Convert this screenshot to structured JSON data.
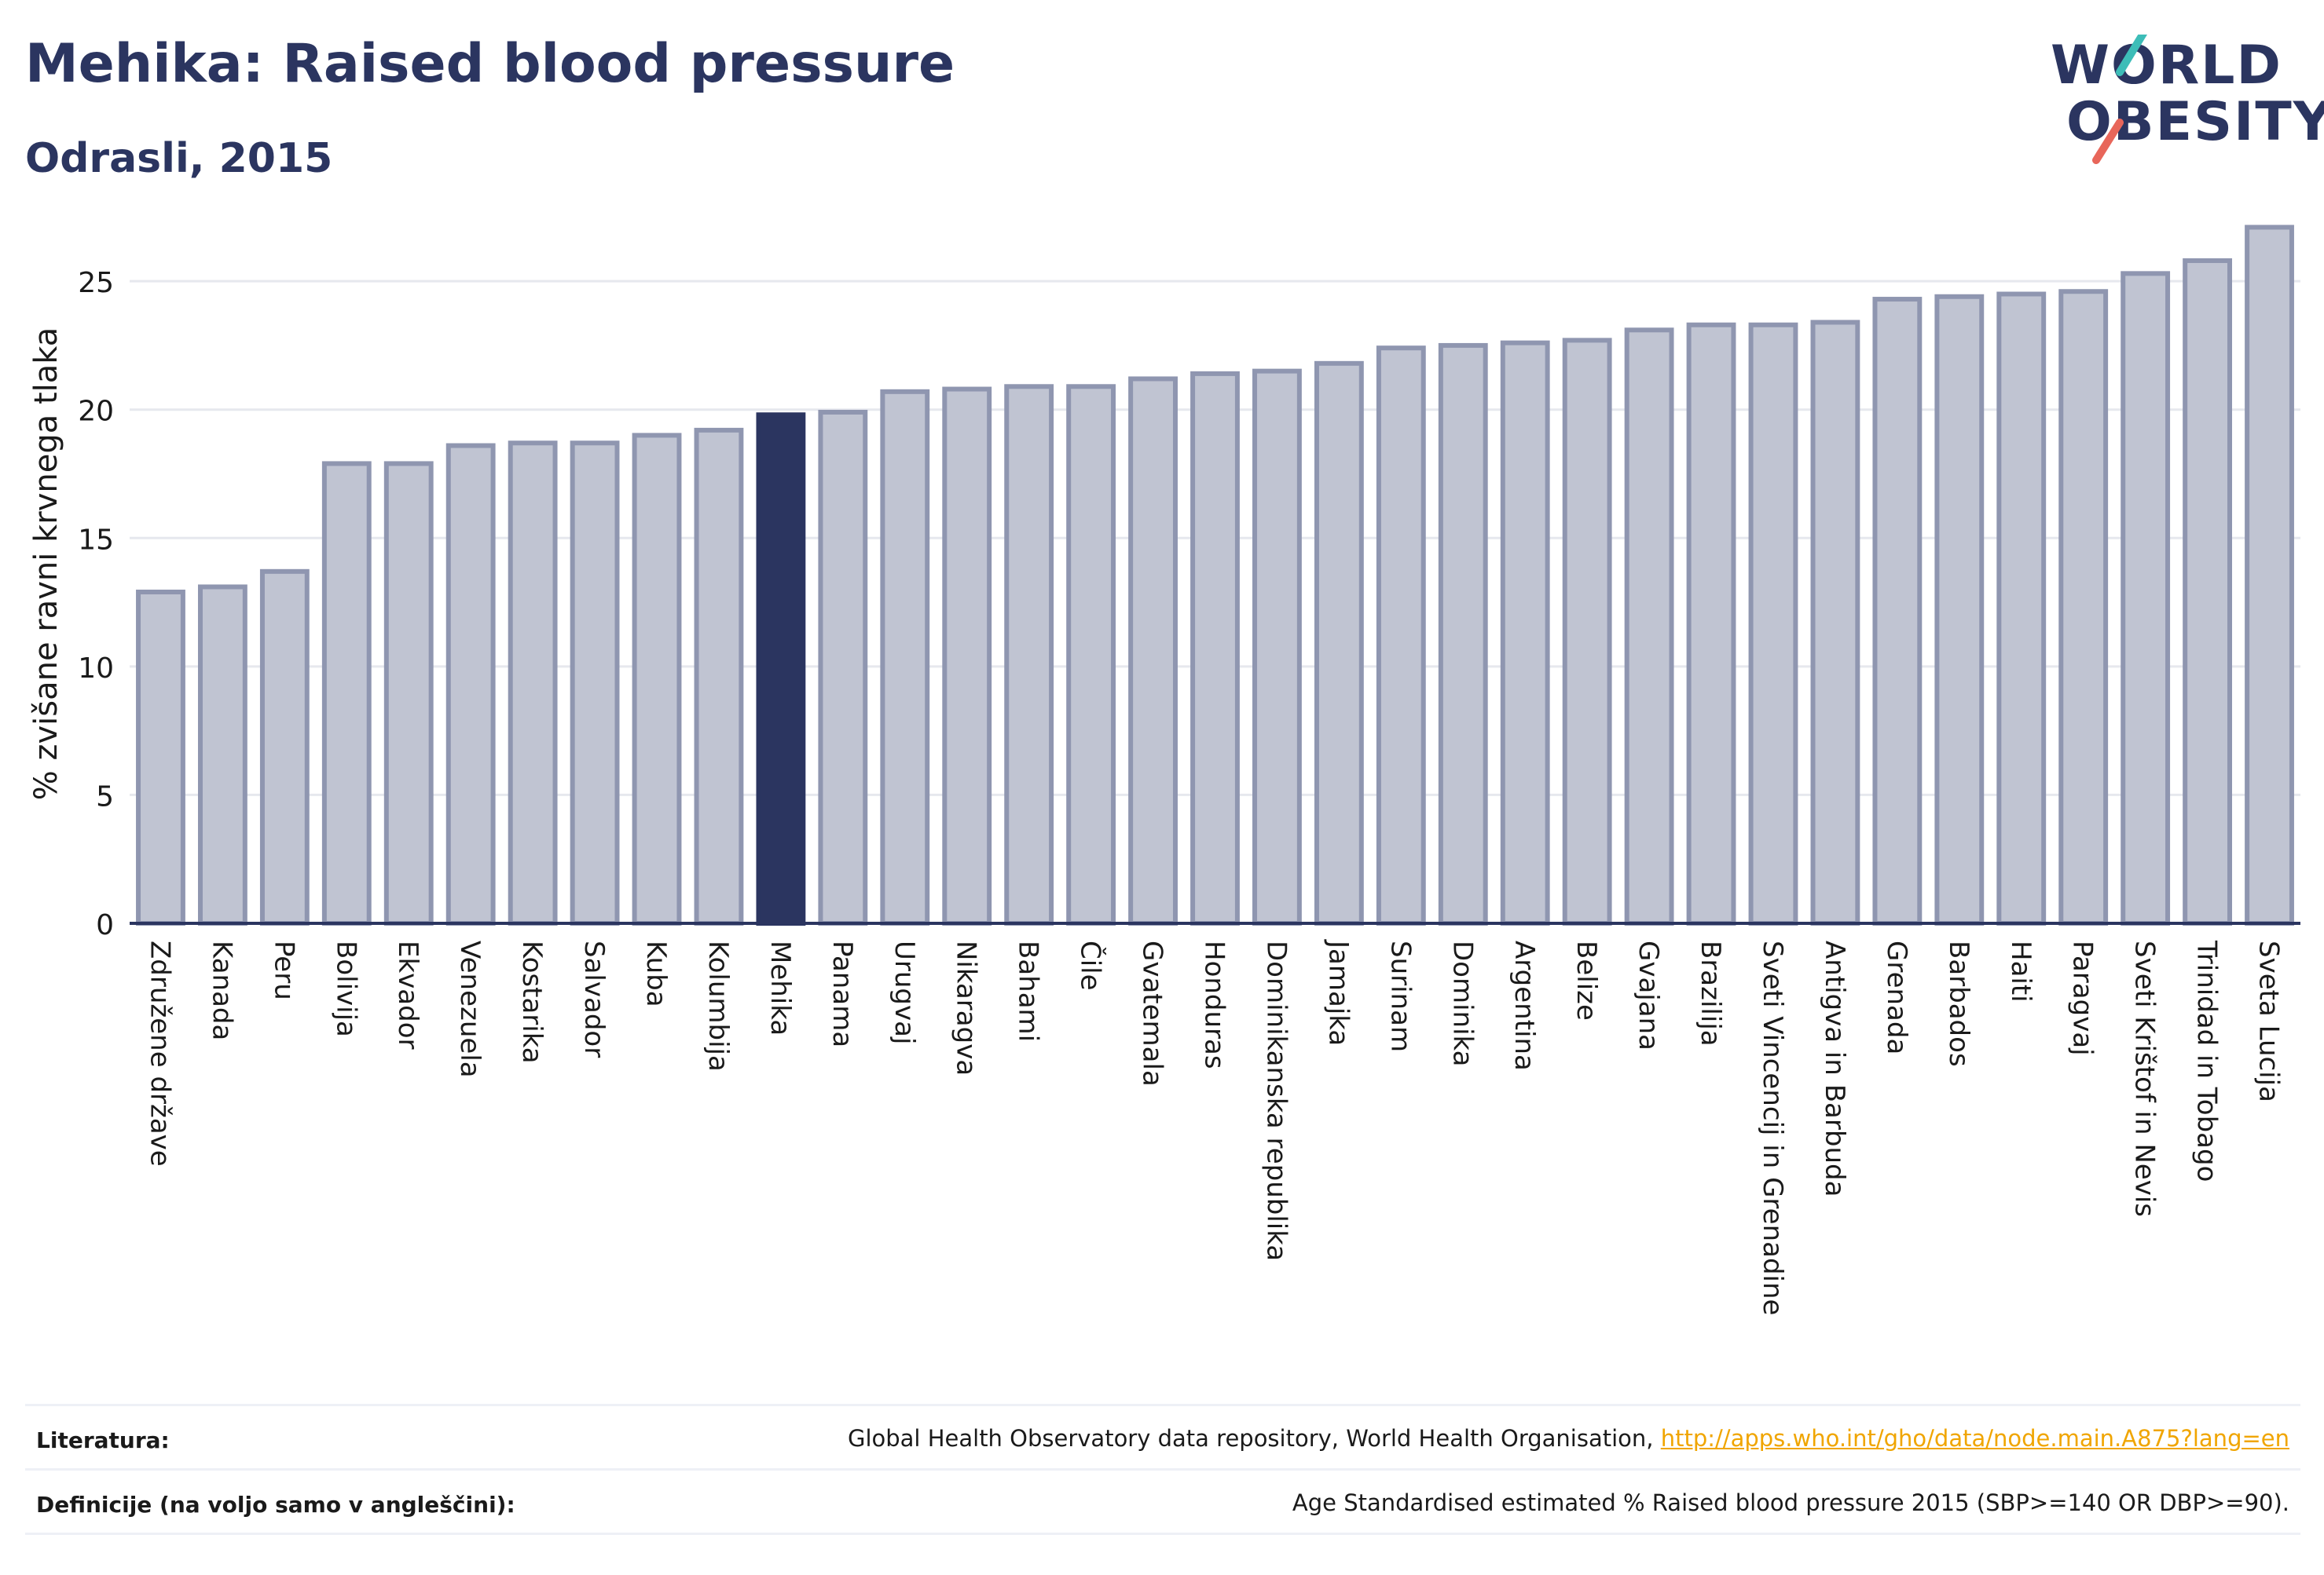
{
  "header": {
    "title": "Mehika: Raised blood pressure",
    "subtitle": "Odrasli, 2015"
  },
  "logo": {
    "line1": "WORLD",
    "line2": "OBESITY",
    "accent_colors": [
      "#3dbdb8",
      "#e8665a"
    ]
  },
  "colors": {
    "bar": "#c0c4d2",
    "bar_edge": "#8f96b0",
    "highlight": "#2b3560",
    "grid": "#e6e8ee",
    "axis": "#2b3560"
  },
  "chart_data": {
    "type": "bar",
    "title": "",
    "xlabel": "",
    "ylabel": "% zvišane ravni krvnega tlaka",
    "ylim": [
      0,
      28
    ],
    "yticks": [
      0,
      5,
      10,
      15,
      20,
      25
    ],
    "grid": true,
    "highlight_category": "Mehika",
    "categories": [
      "Združene države",
      "Kanada",
      "Peru",
      "Bolivija",
      "Ekvador",
      "Venezuela",
      "Kostarika",
      "Salvador",
      "Kuba",
      "Kolumbija",
      "Mehika",
      "Panama",
      "Urugvaj",
      "Nikaragva",
      "Bahami",
      "Čile",
      "Gvatemala",
      "Honduras",
      "Dominikanska republika",
      "Jamajka",
      "Surinam",
      "Dominika",
      "Argentina",
      "Belize",
      "Gvajana",
      "Brazilija",
      "Sveti Vincencij in Grenadine",
      "Antigva in Barbuda",
      "Grenada",
      "Barbados",
      "Haiti",
      "Paragvaj",
      "Sveti Krištof in Nevis",
      "Trinidad in Tobago",
      "Sveta Lucija"
    ],
    "values": [
      12.9,
      13.1,
      13.7,
      17.9,
      17.9,
      18.6,
      18.7,
      18.7,
      19.0,
      19.2,
      19.8,
      19.9,
      20.7,
      20.8,
      20.9,
      20.9,
      21.2,
      21.4,
      21.5,
      21.8,
      22.4,
      22.5,
      22.6,
      22.7,
      23.1,
      23.3,
      23.3,
      23.4,
      24.3,
      24.4,
      24.5,
      24.6,
      25.3,
      25.8,
      27.1
    ]
  },
  "footer": {
    "references_label": "Literatura:",
    "references_text": "Global Health Observatory data repository, World Health Organisation, ",
    "references_link": "http://apps.who.int/gho/data/node.main.A875?lang=en",
    "definitions_label": "Definicije (na voljo samo v angleščini):",
    "definitions_text": "Age Standardised estimated % Raised blood pressure 2015 (SBP>=140 OR DBP>=90)."
  }
}
